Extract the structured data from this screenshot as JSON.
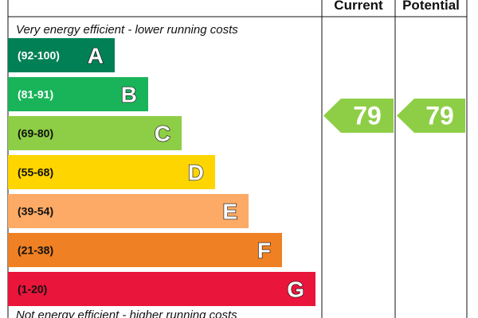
{
  "header": {
    "current_label": "Current",
    "potential_label": "Potential"
  },
  "chart_data": {
    "type": "bar",
    "top_note": "Very energy efficient - lower running costs",
    "bottom_note": "Not energy efficient - higher running costs",
    "bands": [
      {
        "letter": "A",
        "range": "(92-100)",
        "color": "#008054",
        "light_text": true
      },
      {
        "letter": "B",
        "range": "(81-91)",
        "color": "#19b459",
        "light_text": true
      },
      {
        "letter": "C",
        "range": "(69-80)",
        "color": "#8dce46",
        "light_text": false
      },
      {
        "letter": "D",
        "range": "(55-68)",
        "color": "#ffd500",
        "light_text": false
      },
      {
        "letter": "E",
        "range": "(39-54)",
        "color": "#fcaa65",
        "light_text": false
      },
      {
        "letter": "F",
        "range": "(21-38)",
        "color": "#ef8023",
        "light_text": false
      },
      {
        "letter": "G",
        "range": "(1-20)",
        "color": "#e9153b",
        "light_text": false
      }
    ],
    "current": {
      "value": 79,
      "band": "C",
      "color": "#8dce46"
    },
    "potential": {
      "value": 79,
      "band": "C",
      "color": "#8dce46"
    }
  }
}
